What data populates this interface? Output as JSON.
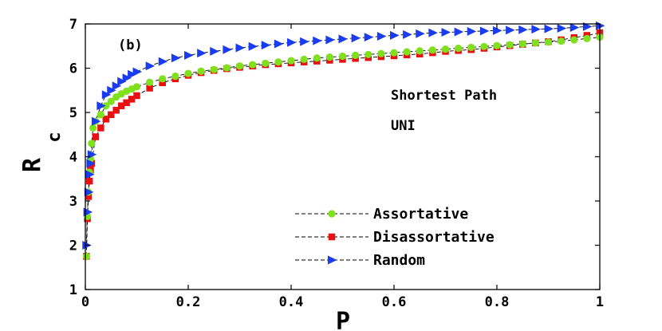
{
  "chart_data": {
    "type": "scatter",
    "panel_label": "(b)",
    "annotations": [
      "Shortest Path",
      "UNI"
    ],
    "xlabel": "P",
    "ylabel_main": "R",
    "ylabel_sub": "c",
    "xlim": [
      0,
      1
    ],
    "ylim": [
      1,
      7
    ],
    "xticks": [
      "0",
      "0.2",
      "0.4",
      "0.6",
      "0.8",
      "1"
    ],
    "yticks": [
      "1",
      "2",
      "3",
      "4",
      "5",
      "6",
      "7"
    ],
    "grid": false,
    "legend_position": "bottom-right",
    "series": [
      {
        "name": "Assortative",
        "marker": "circle",
        "color": "#7fe01e",
        "x": [
          0.002,
          0.004,
          0.006,
          0.008,
          0.01,
          0.012,
          0.015,
          0.02,
          0.03,
          0.04,
          0.05,
          0.06,
          0.07,
          0.08,
          0.09,
          0.1,
          0.125,
          0.15,
          0.175,
          0.2,
          0.225,
          0.25,
          0.275,
          0.3,
          0.325,
          0.35,
          0.375,
          0.4,
          0.425,
          0.45,
          0.475,
          0.5,
          0.525,
          0.55,
          0.575,
          0.6,
          0.625,
          0.65,
          0.675,
          0.7,
          0.725,
          0.75,
          0.775,
          0.8,
          0.825,
          0.85,
          0.875,
          0.9,
          0.925,
          0.95,
          0.975,
          1.0
        ],
        "y": [
          1.75,
          2.65,
          3.2,
          3.65,
          3.95,
          4.3,
          4.65,
          4.8,
          4.95,
          5.15,
          5.25,
          5.35,
          5.42,
          5.48,
          5.53,
          5.58,
          5.68,
          5.76,
          5.82,
          5.88,
          5.93,
          5.97,
          6.01,
          6.05,
          6.08,
          6.11,
          6.14,
          6.17,
          6.2,
          6.23,
          6.25,
          6.27,
          6.29,
          6.31,
          6.33,
          6.35,
          6.37,
          6.39,
          6.41,
          6.43,
          6.45,
          6.47,
          6.49,
          6.51,
          6.53,
          6.55,
          6.57,
          6.59,
          6.61,
          6.64,
          6.67,
          6.7
        ]
      },
      {
        "name": "Disassortative",
        "marker": "square",
        "color": "#e81010",
        "x": [
          0.002,
          0.004,
          0.006,
          0.008,
          0.01,
          0.012,
          0.02,
          0.03,
          0.04,
          0.05,
          0.06,
          0.07,
          0.08,
          0.09,
          0.1,
          0.125,
          0.15,
          0.175,
          0.2,
          0.225,
          0.25,
          0.275,
          0.3,
          0.325,
          0.35,
          0.375,
          0.4,
          0.425,
          0.45,
          0.475,
          0.5,
          0.525,
          0.55,
          0.575,
          0.6,
          0.625,
          0.65,
          0.675,
          0.7,
          0.725,
          0.75,
          0.775,
          0.8,
          0.825,
          0.85,
          0.875,
          0.9,
          0.925,
          0.95,
          0.975,
          1.0
        ],
        "y": [
          1.75,
          2.6,
          3.1,
          3.45,
          3.7,
          3.85,
          4.45,
          4.65,
          4.85,
          4.95,
          5.05,
          5.15,
          5.22,
          5.3,
          5.38,
          5.55,
          5.67,
          5.76,
          5.84,
          5.9,
          5.95,
          5.99,
          6.02,
          6.05,
          6.08,
          6.1,
          6.12,
          6.14,
          6.16,
          6.18,
          6.2,
          6.22,
          6.24,
          6.26,
          6.28,
          6.3,
          6.32,
          6.35,
          6.38,
          6.4,
          6.42,
          6.45,
          6.48,
          6.51,
          6.54,
          6.57,
          6.6,
          6.64,
          6.69,
          6.74,
          6.8
        ]
      },
      {
        "name": "Random",
        "marker": "triangle-right",
        "color": "#1a3cf0",
        "x": [
          0.002,
          0.004,
          0.006,
          0.008,
          0.01,
          0.012,
          0.02,
          0.03,
          0.04,
          0.05,
          0.06,
          0.07,
          0.08,
          0.09,
          0.1,
          0.125,
          0.15,
          0.175,
          0.2,
          0.225,
          0.25,
          0.275,
          0.3,
          0.325,
          0.35,
          0.375,
          0.4,
          0.425,
          0.45,
          0.475,
          0.5,
          0.525,
          0.55,
          0.575,
          0.6,
          0.625,
          0.65,
          0.675,
          0.7,
          0.725,
          0.75,
          0.775,
          0.8,
          0.825,
          0.85,
          0.875,
          0.9,
          0.925,
          0.95,
          0.975,
          1.0
        ],
        "y": [
          2.0,
          2.75,
          3.2,
          3.6,
          3.85,
          4.05,
          4.8,
          5.15,
          5.4,
          5.5,
          5.6,
          5.7,
          5.78,
          5.86,
          5.92,
          6.05,
          6.15,
          6.23,
          6.29,
          6.34,
          6.38,
          6.42,
          6.46,
          6.49,
          6.52,
          6.55,
          6.58,
          6.6,
          6.62,
          6.64,
          6.66,
          6.68,
          6.7,
          6.72,
          6.74,
          6.76,
          6.78,
          6.8,
          6.81,
          6.82,
          6.83,
          6.84,
          6.85,
          6.86,
          6.87,
          6.88,
          6.89,
          6.9,
          6.92,
          6.94,
          6.96
        ]
      }
    ]
  }
}
